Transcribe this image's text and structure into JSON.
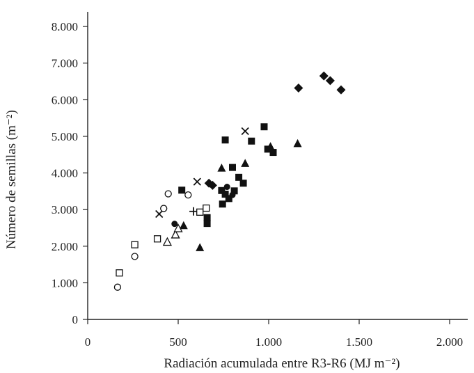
{
  "chart_data": {
    "type": "scatter",
    "title": "",
    "xlabel": "Radiación acumulada entre R3-R6 (MJ m⁻²)",
    "ylabel": "Número de semillas (m⁻²)",
    "xlim": [
      0,
      2100
    ],
    "ylim": [
      0,
      8400
    ],
    "x_ticks": [
      0,
      500,
      1000,
      1500,
      2000
    ],
    "x_tick_labels": [
      "0",
      "500",
      "1.000",
      "1.500",
      "2.000"
    ],
    "y_ticks": [
      0,
      1000,
      2000,
      3000,
      4000,
      5000,
      6000,
      7000,
      8000
    ],
    "y_tick_labels": [
      "0",
      "1.000",
      "2.000",
      "3.000",
      "4.000",
      "5.000",
      "6.000",
      "7.000",
      "8.000"
    ],
    "grid": false,
    "legend": "none",
    "marker_color": "#111111",
    "series": [
      {
        "marker": "diamond-filled",
        "points": [
          [
            1165,
            6320
          ],
          [
            1305,
            6650
          ],
          [
            1340,
            6520
          ],
          [
            1400,
            6270
          ],
          [
            670,
            3720
          ],
          [
            690,
            3660
          ]
        ]
      },
      {
        "marker": "square-filled",
        "points": [
          [
            760,
            4900
          ],
          [
            975,
            5260
          ],
          [
            905,
            4870
          ],
          [
            995,
            4650
          ],
          [
            1025,
            4560
          ],
          [
            800,
            4150
          ],
          [
            835,
            3880
          ],
          [
            860,
            3720
          ],
          [
            740,
            3520
          ],
          [
            760,
            3420
          ],
          [
            780,
            3300
          ],
          [
            745,
            3150
          ],
          [
            810,
            3510
          ],
          [
            660,
            2780
          ],
          [
            660,
            2620
          ],
          [
            520,
            3530
          ]
        ]
      },
      {
        "marker": "triangle-filled",
        "points": [
          [
            1160,
            4800
          ],
          [
            1010,
            4720
          ],
          [
            870,
            4260
          ],
          [
            740,
            4130
          ],
          [
            620,
            1960
          ],
          [
            530,
            2560
          ]
        ]
      },
      {
        "marker": "circle-filled",
        "points": [
          [
            770,
            3620
          ],
          [
            800,
            3400
          ],
          [
            480,
            2610
          ]
        ]
      },
      {
        "marker": "x",
        "points": [
          [
            870,
            5140
          ],
          [
            605,
            3760
          ],
          [
            395,
            2880
          ]
        ]
      },
      {
        "marker": "plus",
        "points": [
          [
            585,
            2950
          ]
        ]
      },
      {
        "marker": "square-open",
        "points": [
          [
            620,
            2930
          ],
          [
            655,
            3040
          ],
          [
            260,
            2040
          ],
          [
            385,
            2200
          ],
          [
            175,
            1270
          ]
        ]
      },
      {
        "marker": "triangle-open",
        "points": [
          [
            440,
            2110
          ],
          [
            485,
            2310
          ],
          [
            500,
            2480
          ]
        ]
      },
      {
        "marker": "circle-open",
        "points": [
          [
            445,
            3430
          ],
          [
            555,
            3400
          ],
          [
            420,
            3030
          ],
          [
            260,
            1720
          ],
          [
            165,
            880
          ]
        ]
      }
    ]
  }
}
